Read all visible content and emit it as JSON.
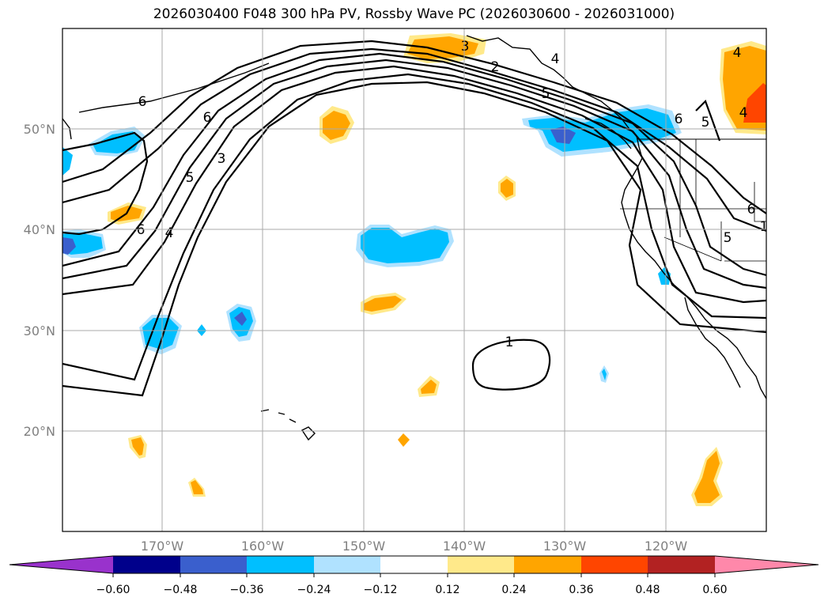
{
  "title": "2026030400 F048 300 hPa PV, Rossby Wave PC (2026030600 - 2026031000)",
  "latitude_labels": [
    "50°N",
    "40°N",
    "30°N",
    "20°N"
  ],
  "longitude_labels": [
    "170°W",
    "160°W",
    "150°W",
    "140°W",
    "130°W",
    "120°W"
  ],
  "contour_labels": [
    "6",
    "5",
    "4",
    "3",
    "2",
    "1",
    "6",
    "6",
    "3",
    "4",
    "5",
    "6",
    "4",
    "4",
    "1",
    "5",
    "5",
    "6"
  ],
  "colorbar": {
    "tick_labels": [
      "−0.60",
      "−0.48",
      "−0.36",
      "−0.24",
      "−0.12",
      "0.12",
      "0.24",
      "0.36",
      "0.48",
      "0.60"
    ],
    "colors": [
      "#9932cc",
      "#00008b",
      "#3a5fcd",
      "#00bfff",
      "#b0e2ff",
      "#ffffff",
      "#ffe98a",
      "#ffa500",
      "#ff4500",
      "#b22222",
      "#ff88aa"
    ]
  },
  "chart_data": {
    "type": "map",
    "variable": "300 hPa PV with Rossby Wave PC shading",
    "pv_contour_levels": [
      1,
      2,
      3,
      4,
      5,
      6
    ],
    "shading_levels": [
      -0.6,
      -0.48,
      -0.36,
      -0.24,
      -0.12,
      0.12,
      0.24,
      0.36,
      0.48,
      0.6
    ],
    "extent": {
      "lon": [
        -180,
        -110
      ],
      "lat": [
        10,
        60
      ]
    }
  }
}
